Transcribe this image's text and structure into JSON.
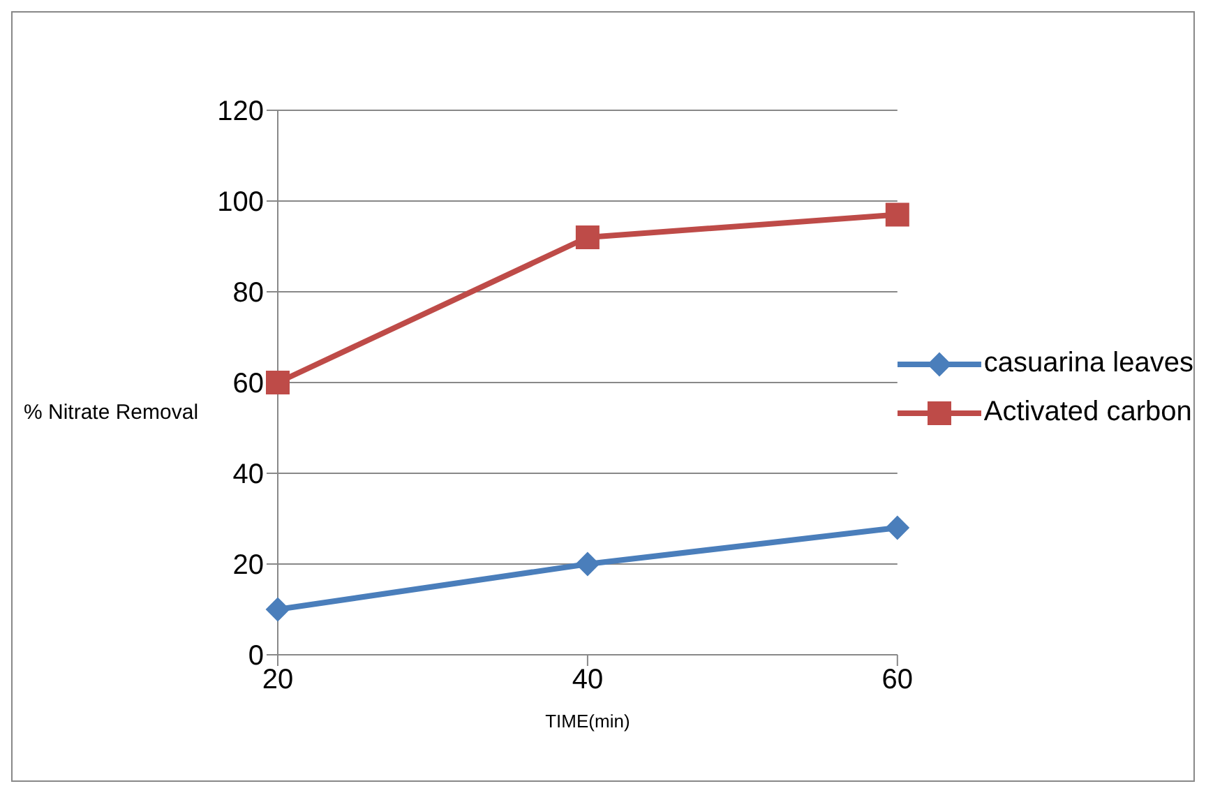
{
  "chart_data": {
    "type": "line",
    "xlabel": "TIME(min)",
    "ylabel": "% Nitrate Removal",
    "categories": [
      "20",
      "40",
      "60"
    ],
    "series": [
      {
        "name": "casuarina leaves",
        "color": "#4a7ebb",
        "marker": "diamond",
        "values": [
          10,
          20,
          28
        ]
      },
      {
        "name": "Activated carbon",
        "color": "#be4b48",
        "marker": "square",
        "values": [
          60,
          92,
          97
        ]
      }
    ],
    "ylim": [
      0,
      120
    ],
    "yticks": [
      0,
      20,
      40,
      60,
      80,
      100,
      120
    ],
    "grid": "y",
    "legend": "right"
  }
}
